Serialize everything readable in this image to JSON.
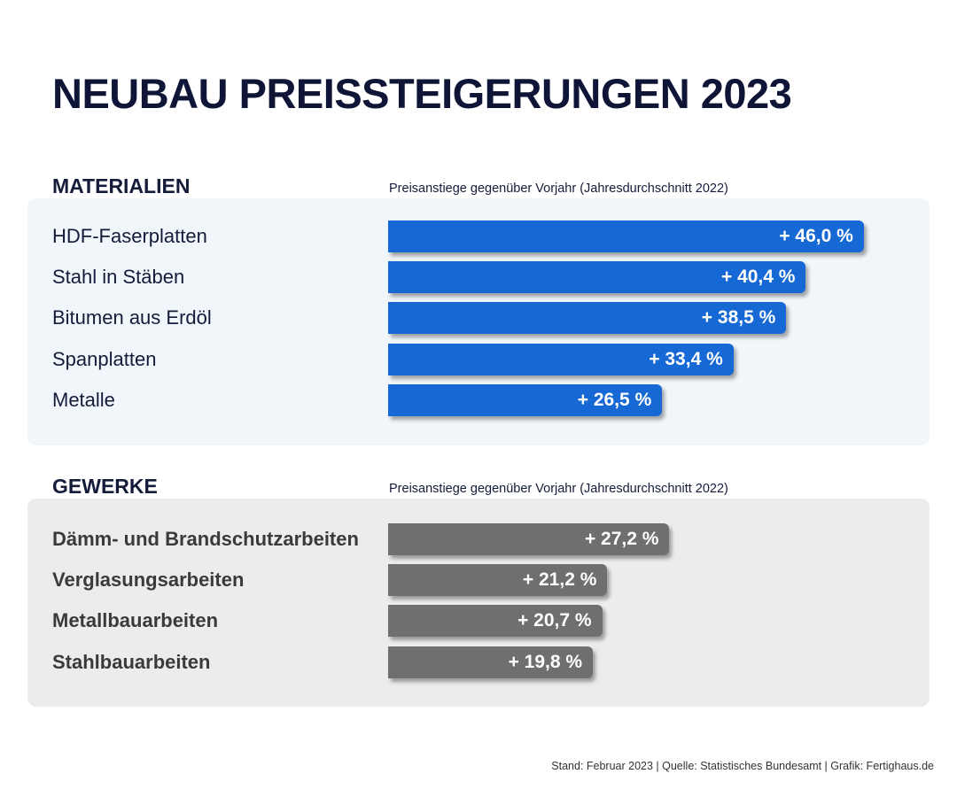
{
  "title": "NEUBAU PREISSTEIGERUNGEN 2023",
  "chart_data": [
    {
      "type": "bar",
      "orientation": "horizontal",
      "title": "MATERIALIEN",
      "subtitle": "Preisanstiege gegenüber Vorjahr (Jahresdurchschnitt 2022)",
      "categories": [
        "HDF-Faserplatten",
        "Stahl in Stäben",
        "Bitumen aus Erdöl",
        "Spanplatten",
        "Metalle"
      ],
      "values": [
        46.0,
        40.4,
        38.5,
        33.4,
        26.5
      ],
      "labels": [
        "+ 46,0 %",
        "+ 40,4 %",
        "+ 38,5 %",
        "+ 33,4 %",
        "+ 26,5 %"
      ],
      "unit": "%",
      "color": "#1668d4"
    },
    {
      "type": "bar",
      "orientation": "horizontal",
      "title": "GEWERKE",
      "subtitle": "Preisanstiege gegenüber Vorjahr (Jahresdurchschnitt 2022)",
      "categories": [
        "Dämm- und Brandschutzarbeiten",
        "Verglasungsarbeiten",
        "Metallbauarbeiten",
        "Stahlbauarbeiten"
      ],
      "values": [
        27.2,
        21.2,
        20.7,
        19.8
      ],
      "labels": [
        "+ 27,2 %",
        "+ 21,2 %",
        "+ 20,7 %",
        "+ 19,8 %"
      ],
      "unit": "%",
      "color": "#6f6f6f"
    }
  ],
  "footer": "Stand: Februar 2023 | Quelle: Statistisches Bundesamt | Grafik: Fertighaus.de"
}
